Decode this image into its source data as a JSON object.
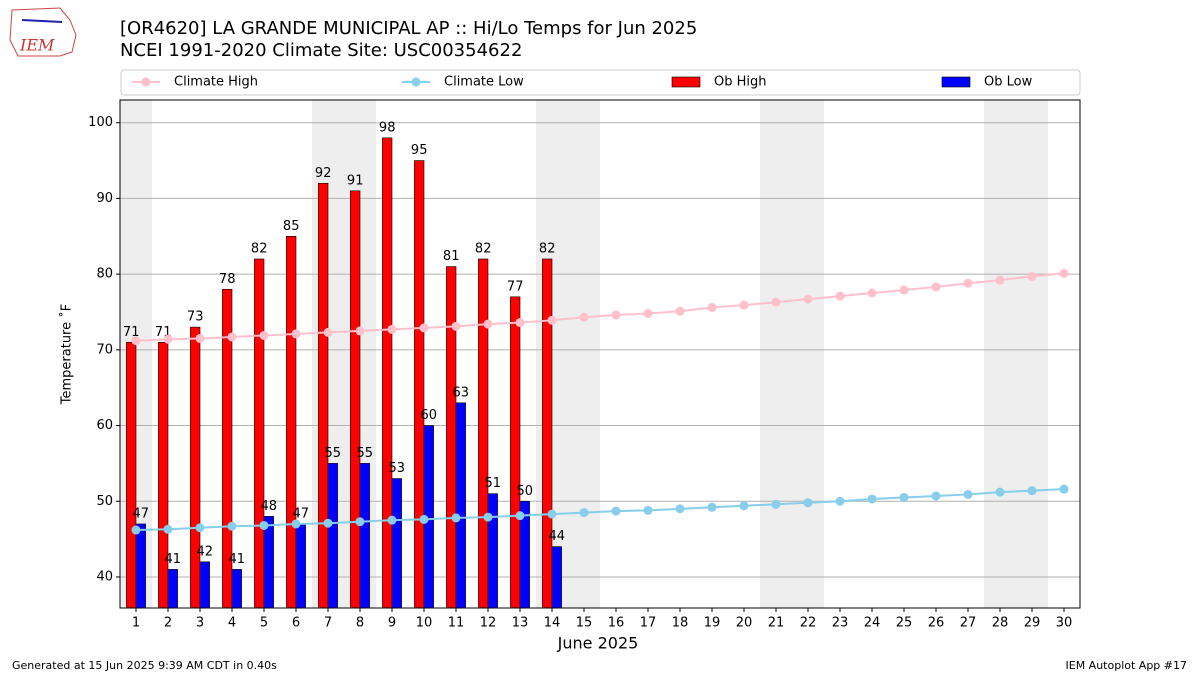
{
  "logo_text": "IEM",
  "footer_left": "Generated at 15 Jun 2025 9:39 AM CDT in 0.40s",
  "footer_right": "IEM Autoplot App #17",
  "chart_data": {
    "type": "bar",
    "title": "[OR4620] LA GRANDE MUNICIPAL AP :: Hi/Lo Temps for Jun 2025",
    "subtitle": "NCEI 1991-2020 Climate Site: USC00354622",
    "x_label": "June 2025",
    "y_label": "Temperature ˚F",
    "x": [
      1,
      2,
      3,
      4,
      5,
      6,
      7,
      8,
      9,
      10,
      11,
      12,
      13,
      14,
      15,
      16,
      17,
      18,
      19,
      20,
      21,
      22,
      23,
      24,
      25,
      26,
      27,
      28,
      29,
      30
    ],
    "xlim": [
      0.5,
      30.5
    ],
    "xticks": [
      1,
      2,
      3,
      4,
      5,
      6,
      7,
      8,
      9,
      10,
      11,
      12,
      13,
      14,
      15,
      16,
      17,
      18,
      19,
      20,
      21,
      22,
      23,
      24,
      25,
      26,
      27,
      28,
      29,
      30
    ],
    "ylim": [
      35.9,
      103
    ],
    "yticks": [
      40,
      50,
      60,
      70,
      80,
      90,
      100
    ],
    "grid": true,
    "legend": "top",
    "series": [
      {
        "name": "Climate High",
        "type": "line",
        "color": "#ffc0cb",
        "values": [
          71.2,
          71.4,
          71.5,
          71.7,
          71.9,
          72.1,
          72.3,
          72.5,
          72.7,
          72.9,
          73.1,
          73.4,
          73.6,
          73.9,
          74.3,
          74.6,
          74.8,
          75.1,
          75.6,
          75.9,
          76.3,
          76.7,
          77.1,
          77.5,
          77.9,
          78.3,
          78.8,
          79.2,
          79.7,
          80.1
        ]
      },
      {
        "name": "Climate Low",
        "type": "line",
        "color": "#87ceeb",
        "values": [
          46.2,
          46.3,
          46.5,
          46.7,
          46.8,
          47.0,
          47.1,
          47.3,
          47.5,
          47.6,
          47.8,
          47.9,
          48.1,
          48.3,
          48.5,
          48.7,
          48.8,
          49.0,
          49.2,
          49.4,
          49.6,
          49.8,
          50.0,
          50.3,
          50.5,
          50.7,
          50.9,
          51.2,
          51.4,
          51.6
        ]
      },
      {
        "name": "Ob High",
        "type": "bar",
        "color": "#ff0000",
        "values": [
          71,
          71,
          73,
          78,
          82,
          85,
          92,
          91,
          98,
          95,
          81,
          82,
          77,
          82,
          null,
          null,
          null,
          null,
          null,
          null,
          null,
          null,
          null,
          null,
          null,
          null,
          null,
          null,
          null,
          null
        ]
      },
      {
        "name": "Ob Low",
        "type": "bar",
        "color": "#0000ff",
        "values": [
          47,
          41,
          42,
          41,
          48,
          47,
          55,
          55,
          53,
          60,
          63,
          51,
          50,
          44,
          null,
          null,
          null,
          null,
          null,
          null,
          null,
          null,
          null,
          null,
          null,
          null,
          null,
          null,
          null,
          null
        ]
      }
    ]
  }
}
